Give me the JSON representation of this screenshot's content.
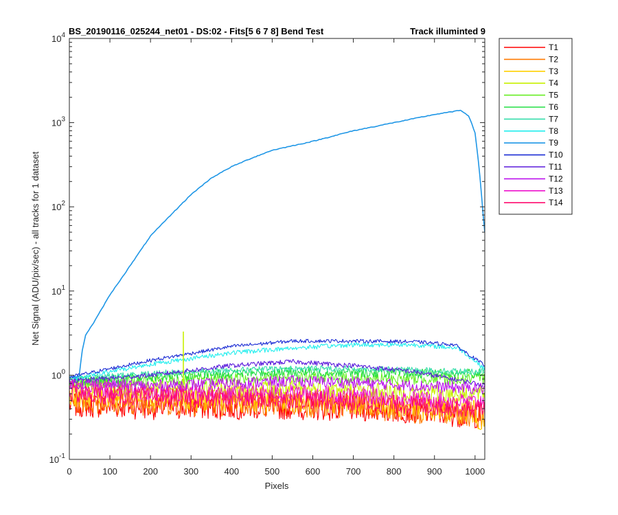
{
  "chart_data": {
    "type": "line",
    "title_left": "BS_20190116_025244_net01 - DS:02 - Fits[5  6  7  8]   Bend Test",
    "title_right": "Track illuminted 9",
    "xlabel": "Pixels",
    "ylabel": "Net Signal (ADU/pix/sec) - all tracks for 1 dataset",
    "xlim": [
      0,
      1024
    ],
    "ylim": [
      0.1,
      10000
    ],
    "yscale": "log",
    "grid": false,
    "legend_position": "outside-right",
    "x_ticks": [
      "0",
      "100",
      "200",
      "300",
      "400",
      "500",
      "600",
      "700",
      "800",
      "900",
      "1000"
    ],
    "y_ticks": [
      {
        "base": "10",
        "exp": "-1"
      },
      {
        "base": "10",
        "exp": "0"
      },
      {
        "base": "10",
        "exp": "1"
      },
      {
        "base": "10",
        "exp": "2"
      },
      {
        "base": "10",
        "exp": "3"
      },
      {
        "base": "10",
        "exp": "4"
      }
    ],
    "series": [
      {
        "name": "T1",
        "color": "#ff0000",
        "noise": 0.22,
        "points": [
          [
            0,
            0.45
          ],
          [
            200,
            0.42
          ],
          [
            400,
            0.42
          ],
          [
            550,
            0.42
          ],
          [
            700,
            0.4
          ],
          [
            850,
            0.38
          ],
          [
            1000,
            0.33
          ],
          [
            1024,
            0.34
          ]
        ]
      },
      {
        "name": "T2",
        "color": "#ff7a00",
        "noise": 0.22,
        "points": [
          [
            0,
            0.5
          ],
          [
            200,
            0.47
          ],
          [
            400,
            0.46
          ],
          [
            550,
            0.46
          ],
          [
            700,
            0.42
          ],
          [
            850,
            0.38
          ],
          [
            1000,
            0.34
          ],
          [
            1024,
            0.3
          ]
        ]
      },
      {
        "name": "T3",
        "color": "#ffd000",
        "noise": 0.22,
        "points": [
          [
            0,
            0.6
          ],
          [
            200,
            0.55
          ],
          [
            400,
            0.52
          ],
          [
            550,
            0.52
          ],
          [
            700,
            0.48
          ],
          [
            850,
            0.42
          ],
          [
            1000,
            0.36
          ],
          [
            1024,
            0.25
          ]
        ]
      },
      {
        "name": "T4",
        "color": "#c8f000",
        "noise": 0.16,
        "points": [
          [
            0,
            0.75
          ],
          [
            200,
            0.7
          ],
          [
            400,
            0.68
          ],
          [
            550,
            0.68
          ],
          [
            700,
            0.66
          ],
          [
            850,
            0.62
          ],
          [
            1000,
            0.6
          ],
          [
            1024,
            0.6
          ]
        ]
      },
      {
        "name": "T5",
        "color": "#66ee22",
        "noise": 0.1,
        "points": [
          [
            0,
            0.8
          ],
          [
            200,
            0.85
          ],
          [
            400,
            0.92
          ],
          [
            550,
            0.95
          ],
          [
            700,
            0.92
          ],
          [
            850,
            0.9
          ],
          [
            1000,
            0.9
          ],
          [
            1024,
            0.92
          ]
        ]
      },
      {
        "name": "T6",
        "color": "#22dd44",
        "noise": 0.08,
        "points": [
          [
            0,
            0.85
          ],
          [
            200,
            0.95
          ],
          [
            400,
            1.05
          ],
          [
            550,
            1.1
          ],
          [
            700,
            1.08
          ],
          [
            850,
            1.05
          ],
          [
            1000,
            1.05
          ],
          [
            1024,
            1.1
          ]
        ]
      },
      {
        "name": "T7",
        "color": "#33ddaa",
        "noise": 0.05,
        "points": [
          [
            0,
            0.9
          ],
          [
            200,
            1.05
          ],
          [
            400,
            1.15
          ],
          [
            550,
            1.2
          ],
          [
            700,
            1.2
          ],
          [
            850,
            1.15
          ],
          [
            1000,
            1.1
          ],
          [
            1024,
            1.15
          ]
        ]
      },
      {
        "name": "T8",
        "color": "#22eeee",
        "noise": 0.04,
        "points": [
          [
            0,
            0.9
          ],
          [
            200,
            1.35
          ],
          [
            400,
            1.85
          ],
          [
            550,
            2.1
          ],
          [
            700,
            2.3
          ],
          [
            850,
            2.3
          ],
          [
            960,
            2.1
          ],
          [
            1024,
            1.2
          ]
        ]
      },
      {
        "name": "T9",
        "color": "#1e96e6",
        "noise": 0.006,
        "points": [
          [
            0,
            0.95
          ],
          [
            25,
            0.95
          ],
          [
            30,
            1.8
          ],
          [
            40,
            3.0
          ],
          [
            60,
            4.2
          ],
          [
            100,
            9
          ],
          [
            150,
            20
          ],
          [
            200,
            45
          ],
          [
            250,
            80
          ],
          [
            300,
            140
          ],
          [
            350,
            220
          ],
          [
            400,
            300
          ],
          [
            450,
            380
          ],
          [
            500,
            470
          ],
          [
            600,
            600
          ],
          [
            700,
            800
          ],
          [
            800,
            1000
          ],
          [
            900,
            1250
          ],
          [
            965,
            1400
          ],
          [
            985,
            1200
          ],
          [
            1000,
            750
          ],
          [
            1010,
            300
          ],
          [
            1020,
            80
          ],
          [
            1024,
            50
          ]
        ]
      },
      {
        "name": "T10",
        "color": "#1a2bd4",
        "noise": 0.03,
        "points": [
          [
            0,
            0.95
          ],
          [
            200,
            1.5
          ],
          [
            400,
            2.2
          ],
          [
            550,
            2.55
          ],
          [
            700,
            2.55
          ],
          [
            850,
            2.5
          ],
          [
            950,
            2.3
          ],
          [
            1024,
            1.3
          ]
        ]
      },
      {
        "name": "T11",
        "color": "#5a1adb",
        "noise": 0.04,
        "points": [
          [
            0,
            0.85
          ],
          [
            200,
            1.0
          ],
          [
            400,
            1.3
          ],
          [
            550,
            1.45
          ],
          [
            700,
            1.3
          ],
          [
            850,
            1.1
          ],
          [
            1000,
            0.8
          ],
          [
            1024,
            0.75
          ]
        ]
      },
      {
        "name": "T12",
        "color": "#bb11ee",
        "noise": 0.1,
        "points": [
          [
            0,
            0.8
          ],
          [
            200,
            0.75
          ],
          [
            400,
            0.8
          ],
          [
            550,
            0.85
          ],
          [
            700,
            0.82
          ],
          [
            850,
            0.75
          ],
          [
            1000,
            0.7
          ],
          [
            1024,
            0.7
          ]
        ]
      },
      {
        "name": "T13",
        "color": "#ee11cc",
        "noise": 0.14,
        "points": [
          [
            0,
            0.7
          ],
          [
            200,
            0.62
          ],
          [
            400,
            0.6
          ],
          [
            550,
            0.62
          ],
          [
            700,
            0.58
          ],
          [
            850,
            0.52
          ],
          [
            1000,
            0.48
          ],
          [
            1024,
            0.5
          ]
        ]
      },
      {
        "name": "T14",
        "color": "#ff0a6e",
        "noise": 0.16,
        "points": [
          [
            0,
            0.6
          ],
          [
            200,
            0.55
          ],
          [
            400,
            0.52
          ],
          [
            550,
            0.52
          ],
          [
            700,
            0.48
          ],
          [
            850,
            0.44
          ],
          [
            1000,
            0.4
          ],
          [
            1024,
            0.42
          ]
        ]
      }
    ],
    "spike": {
      "series": "T4",
      "x": 281,
      "y_low": 0.8,
      "y_high": 3.3
    }
  }
}
